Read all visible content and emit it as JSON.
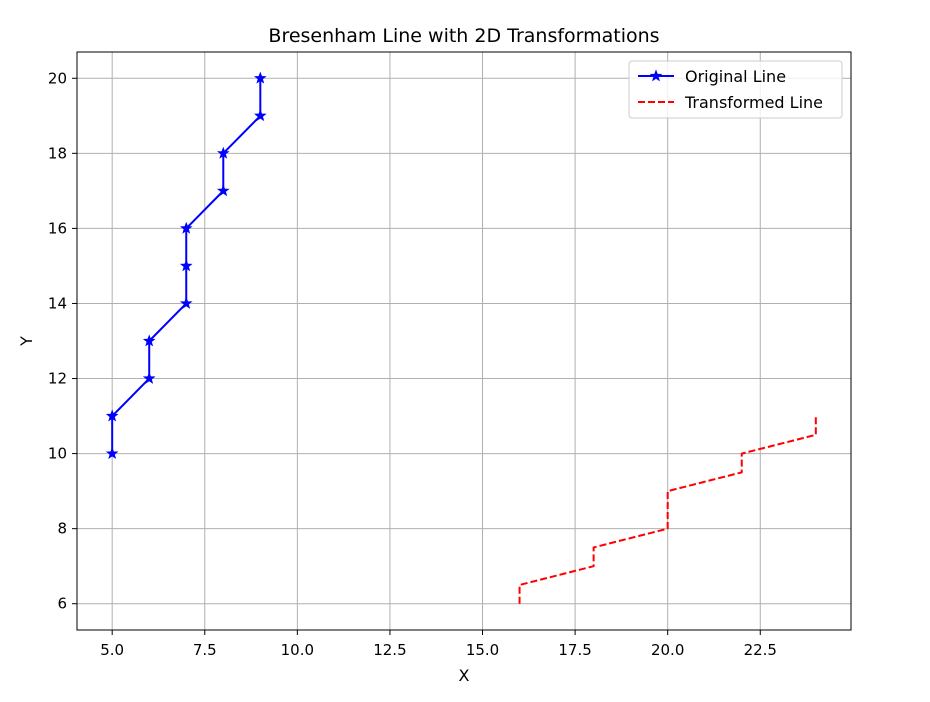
{
  "chart_data": {
    "type": "line",
    "title": "Bresenham Line with 2D Transformations",
    "xlabel": "X",
    "ylabel": "Y",
    "xlim": [
      4.05,
      24.95
    ],
    "ylim": [
      5.3,
      20.7
    ],
    "xticks": [
      5.0,
      7.5,
      10.0,
      12.5,
      15.0,
      17.5,
      20.0,
      22.5
    ],
    "xtick_labels": [
      "5.0",
      "7.5",
      "10.0",
      "12.5",
      "15.0",
      "17.5",
      "20.0",
      "22.5"
    ],
    "yticks": [
      6,
      8,
      10,
      12,
      14,
      16,
      18,
      20
    ],
    "ytick_labels": [
      "6",
      "8",
      "10",
      "12",
      "14",
      "16",
      "18",
      "20"
    ],
    "grid": true,
    "legend_position": "top-right",
    "series": [
      {
        "name": "Original Line",
        "color": "#0000ff",
        "line_style": "solid",
        "marker": "star",
        "x": [
          5,
          5,
          6,
          6,
          7,
          7,
          7,
          8,
          8,
          9,
          9
        ],
        "y": [
          10,
          11,
          12,
          13,
          14,
          15,
          16,
          17,
          18,
          19,
          20
        ]
      },
      {
        "name": "Transformed Line",
        "color": "#ff0000",
        "line_style": "dashed",
        "marker": "none",
        "x": [
          16,
          16,
          18,
          18,
          20,
          20,
          22,
          22,
          24,
          24
        ],
        "y": [
          6,
          6.5,
          7,
          7.5,
          8,
          9,
          9.5,
          10,
          10.5,
          11
        ]
      }
    ]
  }
}
